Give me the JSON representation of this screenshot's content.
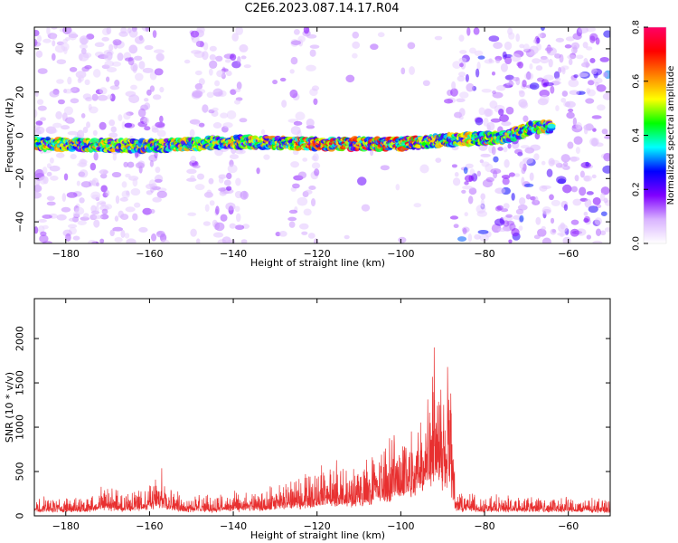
{
  "title": "C2E6.2023.087.14.17.R04",
  "chart_data": [
    {
      "type": "heatmap",
      "xlabel": "Height of straight line (km)",
      "ylabel": "Frequency (Hz)",
      "xlim": [
        -187.5,
        -50
      ],
      "ylim": [
        -50,
        50
      ],
      "x_ticks": [
        -180,
        -160,
        -140,
        -120,
        -100,
        -80,
        -60
      ],
      "y_ticks": [
        -40,
        -20,
        0,
        20,
        40
      ],
      "colorbar": {
        "label": "Normalized spectral amplitude",
        "range": [
          0,
          0.8
        ],
        "ticks": [
          0.0,
          0.2,
          0.4,
          0.6,
          0.8
        ],
        "colors": [
          "#ffffff",
          "#d9b3ff",
          "#8000ff",
          "#0000ff",
          "#00ffff",
          "#00ff00",
          "#ffff00",
          "#ff8000",
          "#ff0000",
          "#ff0066"
        ]
      },
      "band": {
        "description_free_values": true,
        "centre_frequency_hz": [
          [
            -187.5,
            -4
          ],
          [
            -160,
            -5
          ],
          [
            -140,
            -3
          ],
          [
            -120,
            -4
          ],
          [
            -100,
            -4
          ],
          [
            -88,
            -2
          ],
          [
            -75,
            -1
          ],
          [
            -68,
            4
          ]
        ],
        "halfwidth_hz": 2.5
      },
      "noise_gaps_km": [
        [
          -157,
          -150
        ],
        [
          -137,
          -126
        ],
        [
          -120,
          -88
        ]
      ],
      "grid": false
    },
    {
      "type": "line",
      "series": [
        {
          "color": "#e83030"
        }
      ],
      "xlabel": "Height of straight line (km)",
      "ylabel": "SNR (10 * v/v)",
      "xlim": [
        -187.5,
        -50
      ],
      "ylim": [
        0,
        2450
      ],
      "x_ticks": [
        -180,
        -160,
        -140,
        -120,
        -100,
        -80,
        -60
      ],
      "y_ticks": [
        0,
        500,
        1000,
        1500,
        2000
      ],
      "envelope_km_snr": [
        [
          -187.5,
          220
        ],
        [
          -175,
          230
        ],
        [
          -171,
          380
        ],
        [
          -166,
          260
        ],
        [
          -162,
          320
        ],
        [
          -157,
          520
        ],
        [
          -153,
          260
        ],
        [
          -145,
          240
        ],
        [
          -140,
          260
        ],
        [
          -133,
          300
        ],
        [
          -127,
          420
        ],
        [
          -122,
          520
        ],
        [
          -118,
          640
        ],
        [
          -112,
          560
        ],
        [
          -107,
          740
        ],
        [
          -103,
          880
        ],
        [
          -100,
          1150
        ],
        [
          -97,
          1050
        ],
        [
          -95,
          1450
        ],
        [
          -93,
          1900
        ],
        [
          -92,
          2450
        ],
        [
          -90,
          1650
        ],
        [
          -88.5,
          2200
        ],
        [
          -87,
          300
        ],
        [
          -80,
          230
        ],
        [
          -70,
          250
        ],
        [
          -60,
          220
        ],
        [
          -50,
          210
        ]
      ],
      "grid": false
    }
  ]
}
